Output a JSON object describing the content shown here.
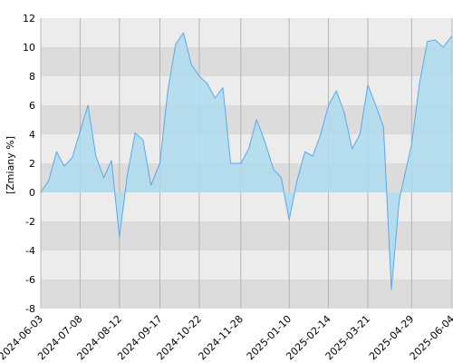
{
  "chart_data": {
    "type": "area",
    "title": "",
    "xlabel": "",
    "ylabel": "[Zmiany %]",
    "ylim": [
      -8,
      12
    ],
    "y_ticks": [
      -8,
      -6,
      -4,
      -2,
      0,
      2,
      4,
      6,
      8,
      10,
      12
    ],
    "x_ticks": [
      "2024-06-03",
      "2024-07-08",
      "2024-08-12",
      "2024-09-17",
      "2024-10-22",
      "2024-11-28",
      "2025-01-10",
      "2025-02-14",
      "2025-03-21",
      "2025-04-29",
      "2025-06-04"
    ],
    "grid": true,
    "legend": "none",
    "colors": {
      "line": "#5aa8e8",
      "fill": "#aedcf0",
      "band_dark": "#dcdcdc",
      "band_light": "#ececec",
      "vgrid": "#b4b4b4"
    },
    "series": [
      {
        "x": [
          "2024-06-03",
          "2024-06-10",
          "2024-06-17",
          "2024-06-24",
          "2024-07-01",
          "2024-07-08",
          "2024-07-15",
          "2024-07-22",
          "2024-07-29",
          "2024-08-05",
          "2024-08-12",
          "2024-08-19",
          "2024-08-26",
          "2024-09-02",
          "2024-09-09",
          "2024-09-17",
          "2024-09-24",
          "2024-10-01",
          "2024-10-08",
          "2024-10-15",
          "2024-10-22",
          "2024-10-29",
          "2024-11-05",
          "2024-11-12",
          "2024-11-19",
          "2024-11-28",
          "2024-12-05",
          "2024-12-12",
          "2024-12-19",
          "2024-12-27",
          "2025-01-03",
          "2025-01-10",
          "2025-01-17",
          "2025-01-24",
          "2025-01-31",
          "2025-02-07",
          "2025-02-14",
          "2025-02-21",
          "2025-02-28",
          "2025-03-07",
          "2025-03-14",
          "2025-03-21",
          "2025-03-28",
          "2025-04-04",
          "2025-04-11",
          "2025-04-18",
          "2025-04-29",
          "2025-05-06",
          "2025-05-13",
          "2025-05-20",
          "2025-05-27",
          "2025-06-04"
        ],
        "values": [
          0.0,
          0.8,
          2.8,
          1.8,
          2.4,
          4.2,
          6.0,
          2.5,
          1.0,
          2.2,
          -3.1,
          1.2,
          4.1,
          3.6,
          0.5,
          2.0,
          7.0,
          10.2,
          11.0,
          8.8,
          8.0,
          7.5,
          6.5,
          7.2,
          2.0,
          2.0,
          3.0,
          5.0,
          3.6,
          1.6,
          1.0,
          -1.9,
          0.8,
          2.8,
          2.5,
          4.0,
          6.0,
          7.0,
          5.5,
          3.0,
          4.0,
          7.4,
          6.0,
          4.5,
          -6.7,
          -0.5,
          3.3,
          7.5,
          10.4,
          10.5,
          10.0,
          10.8
        ]
      }
    ]
  }
}
